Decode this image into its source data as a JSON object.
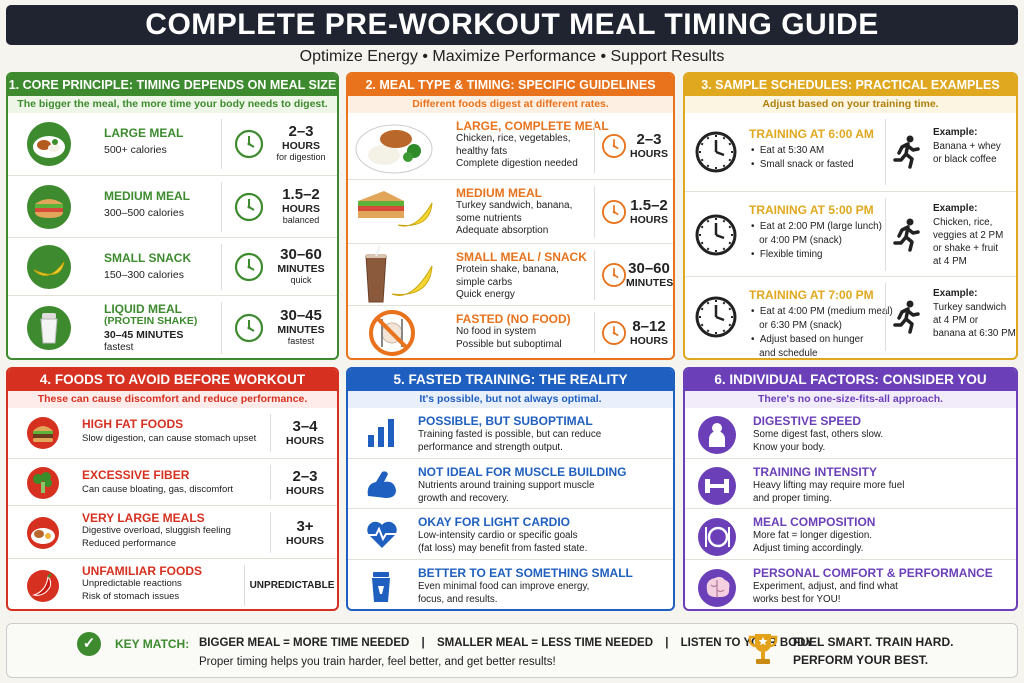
{
  "title": "COMPLETE PRE-WORKOUT MEAL TIMING GUIDE",
  "subtitle": "Optimize Energy • Maximize Performance • Support Results",
  "p1": {
    "header": "1. CORE PRINCIPLE: TIMING DEPENDS ON MEAL SIZE",
    "sub": "The bigger the meal, the more time your body needs to digest.",
    "color": "#3d8b2e",
    "rows": [
      {
        "name": "LARGE MEAL",
        "d1": "500+ calories",
        "d2": "",
        "n": "2–3",
        "u": "HOURS",
        "q": "for digestion",
        "icon": "plate-meal-icon"
      },
      {
        "name": "MEDIUM MEAL",
        "d1": "300–500 calories",
        "d2": "",
        "n": "1.5–2",
        "u": "HOURS",
        "q": "balanced",
        "icon": "sandwich-icon"
      },
      {
        "name": "SMALL SNACK",
        "d1": "150–300 calories",
        "d2": "",
        "n": "30–60",
        "u": "MINUTES",
        "q": "quick",
        "icon": "banana-icon"
      },
      {
        "name": "LIQUID MEAL",
        "d1": "(PROTEIN SHAKE)",
        "d2": "30–45 MINUTES",
        "n": "30–45",
        "u": "MINUTES",
        "q": "fastest",
        "d3": "fastest",
        "icon": "shaker-icon"
      }
    ]
  },
  "p2": {
    "header": "2. MEAL TYPE & TIMING: SPECIFIC GUIDELINES",
    "sub": "Different foods digest at different rates.",
    "color": "#e8731c",
    "rows": [
      {
        "name": "LARGE, COMPLETE MEAL",
        "lines": [
          "Chicken, rice, vegetables,",
          "healthy fats",
          "Complete digestion needed"
        ],
        "n": "2–3",
        "u": "HOURS",
        "icon": "chicken-plate-icon"
      },
      {
        "name": "MEDIUM MEAL",
        "lines": [
          "Turkey sandwich, banana,",
          "some nutrients",
          "Adequate absorption"
        ],
        "n": "1.5–2",
        "u": "HOURS",
        "icon": "sandwich-banana-icon"
      },
      {
        "name": "SMALL MEAL / SNACK",
        "lines": [
          "Protein shake, banana,",
          "simple carbs",
          "Quick energy"
        ],
        "n": "30–60",
        "u": "MINUTES",
        "icon": "shake-banana-icon"
      },
      {
        "name": "FASTED (NO FOOD)",
        "lines": [
          "No food in system",
          "Possible but suboptimal"
        ],
        "n": "8–12",
        "u": "HOURS",
        "icon": "no-food-icon"
      }
    ]
  },
  "p3": {
    "header": "3. SAMPLE SCHEDULES: PRACTICAL EXAMPLES",
    "sub": "Adjust based on your training time.",
    "color": "#e0a81e",
    "rows": [
      {
        "name": "TRAINING AT 6:00 AM",
        "bullets": [
          "Eat at 5:30 AM",
          "Small snack or fasted"
        ],
        "ex_label": "Example:",
        "ex": [
          "Banana + whey",
          "or black coffee"
        ]
      },
      {
        "name": "TRAINING AT 5:00 PM",
        "bullets": [
          "Eat at 2:00 PM (large lunch)",
          "or 4:00 PM (snack)",
          "Flexible timing"
        ],
        "ex_label": "Example:",
        "ex": [
          "Chicken, rice,",
          "veggies at 2 PM",
          "or shake + fruit",
          "at 4 PM"
        ]
      },
      {
        "name": "TRAINING AT 7:00 PM",
        "bullets": [
          "Eat at 4:00 PM (medium meal)",
          "or 6:30 PM (snack)",
          "Adjust based on hunger",
          "and schedule"
        ],
        "ex_label": "Example:",
        "ex": [
          "Turkey sandwich",
          "at 4 PM or",
          "banana at 6:30 PM"
        ]
      }
    ]
  },
  "p4": {
    "header": "4. FOODS TO AVOID BEFORE WORKOUT",
    "sub": "These can cause discomfort and reduce performance.",
    "color": "#d63020",
    "rows": [
      {
        "name": "HIGH FAT FOODS",
        "lines": [
          "Slow digestion, can cause stomach upset"
        ],
        "n": "3–4",
        "u": "HOURS",
        "icon": "burger-icon"
      },
      {
        "name": "EXCESSIVE FIBER",
        "lines": [
          "Can cause bloating, gas, discomfort"
        ],
        "n": "2–3",
        "u": "HOURS",
        "icon": "broccoli-icon"
      },
      {
        "name": "VERY LARGE MEALS",
        "lines": [
          "Digestive overload, sluggish feeling",
          "Reduced performance"
        ],
        "n": "3+",
        "u": "HOURS",
        "icon": "large-meal-icon"
      },
      {
        "name": "UNFAMILIAR FOODS",
        "lines": [
          "Unpredictable reactions",
          "Risk of stomach issues"
        ],
        "n": "UNPREDICTABLE",
        "u": "",
        "icon": "chili-icon"
      }
    ]
  },
  "p5": {
    "header": "5. FASTED TRAINING: THE REALITY",
    "sub": "It's possible, but not always optimal.",
    "color": "#1f5fbf",
    "rows": [
      {
        "name": "POSSIBLE, BUT SUBOPTIMAL",
        "lines": [
          "Training fasted is possible, but can reduce",
          "performance and strength output."
        ],
        "icon": "bar-chart-icon"
      },
      {
        "name": "NOT IDEAL FOR MUSCLE BUILDING",
        "lines": [
          "Nutrients around training support muscle",
          "growth and recovery."
        ],
        "icon": "flexed-arm-icon"
      },
      {
        "name": "OKAY FOR LIGHT CARDIO",
        "lines": [
          "Low-intensity cardio or specific goals",
          "(fat loss) may benefit from fasted state."
        ],
        "icon": "heartbeat-icon"
      },
      {
        "name": "BETTER TO EAT SOMETHING SMALL",
        "lines": [
          "Even minimal food can improve energy,",
          "focus, and results."
        ],
        "icon": "drink-cup-icon"
      }
    ]
  },
  "p6": {
    "header": "6. INDIVIDUAL FACTORS: CONSIDER YOU",
    "sub": "There's no one-size-fits-all approach.",
    "color": "#6b3fb8",
    "rows": [
      {
        "name": "DIGESTIVE SPEED",
        "lines": [
          "Some digest fast, others slow.",
          "Know your body."
        ],
        "icon": "person-icon"
      },
      {
        "name": "TRAINING INTENSITY",
        "lines": [
          "Heavy lifting may require more fuel",
          "and proper timing."
        ],
        "icon": "dumbbell-icon"
      },
      {
        "name": "MEAL COMPOSITION",
        "lines": [
          "More fat = longer digestion.",
          "Adjust timing accordingly."
        ],
        "icon": "plate-cutlery-icon"
      },
      {
        "name": "PERSONAL COMFORT & PERFORMANCE",
        "lines": [
          "Experiment, adjust, and find what",
          "works best for YOU!"
        ],
        "icon": "brain-icon"
      }
    ]
  },
  "footer": {
    "key": "KEY MATCH:",
    "m1": "BIGGER MEAL = MORE TIME NEEDED",
    "m2": "SMALLER MEAL = LESS TIME NEEDED",
    "m3": "LISTEN TO YOUR BODY",
    "sep": "|",
    "note": "Proper timing helps you train harder, feel better, and get better results!",
    "slogan1": "FUEL SMART. TRAIN HARD.",
    "slogan2": "PERFORM YOUR BEST."
  }
}
